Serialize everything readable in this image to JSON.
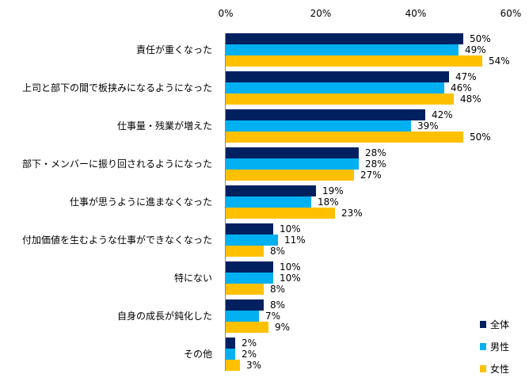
{
  "chart_data": {
    "type": "bar",
    "orientation": "horizontal",
    "title": "",
    "xlabel": "",
    "ylabel": "",
    "xlim": [
      0,
      60
    ],
    "x_ticks": [
      "0%",
      "20%",
      "40%",
      "60%"
    ],
    "x_tick_values": [
      0,
      20,
      40,
      60
    ],
    "grid": false,
    "legend_position": "bottom-right",
    "categories": [
      "責任が重くなった",
      "上司と部下の間で板挟みになるようになった",
      "仕事量・残業が増えた",
      "部下・メンバーに振り回されるようになった",
      "仕事が思うように進まなくなった",
      "付加価値を生むような仕事ができなくなった",
      "特にない",
      "自身の成長が鈍化した",
      "その他"
    ],
    "series": [
      {
        "name": "全体",
        "color": "#002060",
        "values": [
          50,
          47,
          42,
          28,
          19,
          10,
          10,
          8,
          2
        ]
      },
      {
        "name": "男性",
        "color": "#00B0F0",
        "values": [
          49,
          46,
          39,
          28,
          18,
          11,
          10,
          7,
          2
        ]
      },
      {
        "name": "女性",
        "color": "#FFC000",
        "values": [
          54,
          48,
          50,
          27,
          23,
          8,
          8,
          9,
          3
        ]
      }
    ],
    "value_suffix": "%"
  }
}
